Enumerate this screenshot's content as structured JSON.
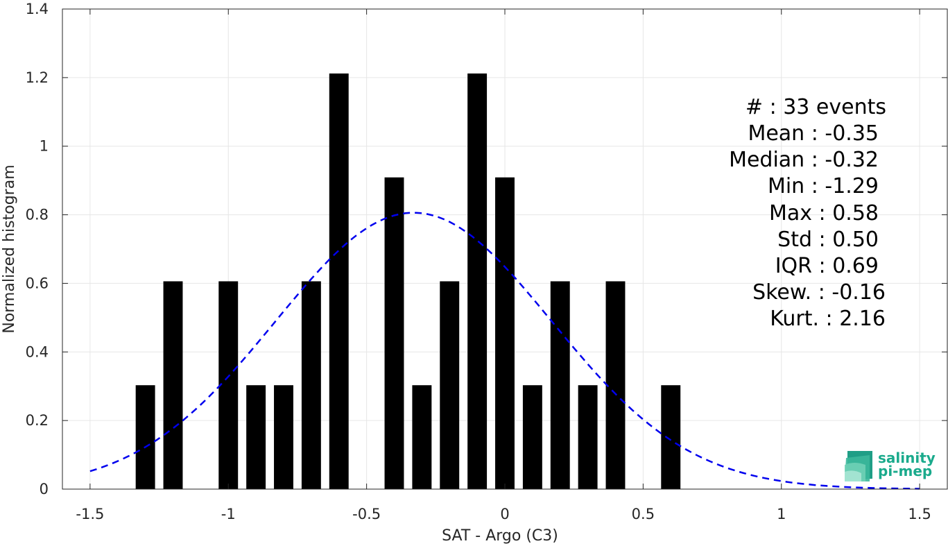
{
  "chart_data": {
    "type": "bar",
    "xlabel": "SAT - Argo (C3)",
    "ylabel": "Normalized histogram",
    "xlim": [
      -1.6,
      1.6
    ],
    "ylim": [
      0,
      1.4
    ],
    "xticks": [
      -1.5,
      -1,
      -0.5,
      0,
      0.5,
      1,
      1.5
    ],
    "xtick_labels": [
      "-1.5",
      "-1",
      "-0.5",
      "0",
      "0.5",
      "1",
      "1.5"
    ],
    "yticks": [
      0,
      0.2,
      0.4,
      0.6,
      0.8,
      1,
      1.2,
      1.4
    ],
    "ytick_labels": [
      "0",
      "0.2",
      "0.4",
      "0.6",
      "0.8",
      "1",
      "1.2",
      "1.4"
    ],
    "grid": true,
    "bar_width": 0.07,
    "bar_color": "#000000",
    "bars": [
      {
        "x": -1.3,
        "y": 0.303
      },
      {
        "x": -1.2,
        "y": 0.606
      },
      {
        "x": -1.0,
        "y": 0.606
      },
      {
        "x": -0.9,
        "y": 0.303
      },
      {
        "x": -0.8,
        "y": 0.303
      },
      {
        "x": -0.7,
        "y": 0.606
      },
      {
        "x": -0.6,
        "y": 1.212
      },
      {
        "x": -0.4,
        "y": 0.909
      },
      {
        "x": -0.3,
        "y": 0.303
      },
      {
        "x": -0.2,
        "y": 0.606
      },
      {
        "x": -0.1,
        "y": 1.212
      },
      {
        "x": 0.0,
        "y": 0.909
      },
      {
        "x": 0.1,
        "y": 0.303
      },
      {
        "x": 0.2,
        "y": 0.606
      },
      {
        "x": 0.3,
        "y": 0.303
      },
      {
        "x": 0.4,
        "y": 0.606
      },
      {
        "x": 0.6,
        "y": 0.303
      }
    ],
    "fit_curve": {
      "style": "dashed",
      "color": "#0000ee",
      "mean": -0.33,
      "std": 0.5,
      "peak": 0.806,
      "x_range": [
        -1.5,
        1.5
      ]
    },
    "annotation": {
      "lines": [
        "#  : 33 events",
        "Mean : -0.35",
        "Median : -0.32",
        "Min : -1.29",
        "Max : 0.58",
        "Std : 0.50",
        "IQR : 0.69",
        "Skew. : -0.16",
        "Kurt. : 2.16"
      ]
    }
  },
  "logo": {
    "line1": "salinity",
    "line2": "pi-mep",
    "color": "#1aaa8c"
  }
}
